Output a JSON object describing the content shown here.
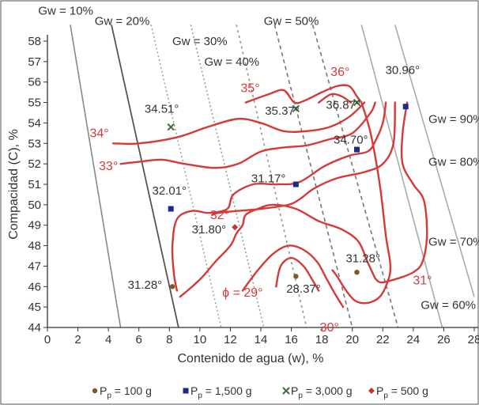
{
  "chart_data": {
    "type": "contour",
    "xlabel": "Contenido de agua (w), %",
    "ylabel": "Compacidad (C), %",
    "xlim": [
      0,
      28
    ],
    "ylim": [
      44,
      58
    ],
    "x_ticks": [
      "0",
      "2",
      "4",
      "6",
      "8",
      "10",
      "12",
      "14",
      "16",
      "18",
      "20",
      "22",
      "24",
      "26",
      "28"
    ],
    "y_ticks": [
      "44",
      "45",
      "46",
      "47",
      "48",
      "49",
      "50",
      "51",
      "52",
      "53",
      "54",
      "55",
      "56",
      "57",
      "58"
    ],
    "colors": {
      "contour": "#d43a3a",
      "contour_label": "#d43a3a",
      "p100": "#7a5a2a",
      "p1500": "#1f2a80",
      "p3000": "#3d6e3d",
      "p500": "#c0392b"
    },
    "saturation_lines": [
      {
        "label": "Gw = 10%",
        "points": [
          [
            1.5,
            58.8
          ],
          [
            4.8,
            44
          ]
        ]
      },
      {
        "label": "Gw = 20%",
        "points": [
          [
            4.2,
            58.8
          ],
          [
            8.6,
            44
          ]
        ]
      },
      {
        "label": "Gw = 30%",
        "points": [
          [
            6.8,
            58.8
          ],
          [
            11.4,
            44
          ]
        ]
      },
      {
        "label": "Gw = 40%",
        "points": [
          [
            9.4,
            58.8
          ],
          [
            14.2,
            44
          ]
        ]
      },
      {
        "label": "Gw = 50%",
        "points": [
          [
            12.4,
            58.8
          ],
          [
            17.0,
            44
          ]
        ]
      },
      {
        "label": "Gw = 60%",
        "points": [
          [
            14.9,
            58.8
          ],
          [
            20.0,
            44
          ]
        ]
      },
      {
        "label": "Gw = 70%",
        "points": [
          [
            17.4,
            58.8
          ],
          [
            23.0,
            44
          ]
        ]
      },
      {
        "label": "Gw = 80%",
        "points": [
          [
            20.6,
            58.8
          ],
          [
            25.9,
            44
          ]
        ]
      },
      {
        "label": "Gw = 90%",
        "points": [
          [
            22.8,
            58.8
          ],
          [
            28.0,
            45.5
          ]
        ]
      }
    ],
    "gw_labels": [
      {
        "text": "Gw = 10%",
        "x": 1.2,
        "y": 59.3
      },
      {
        "text": "Gw = 20%",
        "x": 4.9,
        "y": 58.8
      },
      {
        "text": "Gw = 30%",
        "x": 10.0,
        "y": 57.8
      },
      {
        "text": "Gw = 40%",
        "x": 12.1,
        "y": 56.8
      },
      {
        "text": "Gw = 50%",
        "x": 16.0,
        "y": 58.8
      },
      {
        "text": "Gw = 90%",
        "x": 26.8,
        "y": 54.0
      },
      {
        "text": "Gw = 80%",
        "x": 26.8,
        "y": 51.9
      },
      {
        "text": "Gw = 70%",
        "x": 26.8,
        "y": 48.0
      },
      {
        "text": "Gw = 60%",
        "x": 26.3,
        "y": 44.9
      }
    ],
    "contours": [
      {
        "label": "35°",
        "points": [
          [
            13.0,
            55.0
          ],
          [
            14.5,
            55.4
          ],
          [
            15.5,
            55.6
          ],
          [
            16.2,
            55.0
          ],
          [
            16.9,
            55.1
          ],
          [
            18.0,
            55.5
          ],
          [
            19.0,
            55.8
          ],
          [
            19.8,
            55.8
          ],
          [
            20.3,
            55.3
          ],
          [
            20.6,
            55.0
          ]
        ]
      },
      {
        "label": "36°",
        "points": [
          [
            17.8,
            55.0
          ],
          [
            18.6,
            55.4
          ],
          [
            19.3,
            55.3
          ],
          [
            19.9,
            55.0
          ]
        ]
      },
      {
        "label": "34°",
        "points": [
          [
            4.3,
            53.0
          ],
          [
            6.0,
            53.0
          ],
          [
            8.5,
            53.3
          ],
          [
            10.5,
            53.8
          ],
          [
            12.5,
            54.2
          ],
          [
            14.0,
            54.0
          ],
          [
            15.5,
            53.6
          ],
          [
            17.0,
            53.6
          ],
          [
            18.5,
            53.8
          ],
          [
            19.8,
            54.3
          ],
          [
            20.8,
            55.0
          ]
        ]
      },
      {
        "label": "33°",
        "points": [
          [
            4.8,
            52.0
          ],
          [
            6.0,
            52.1
          ],
          [
            7.5,
            52.2
          ],
          [
            9.0,
            52.0
          ],
          [
            11.0,
            51.8
          ],
          [
            12.5,
            52.0
          ],
          [
            14.0,
            52.6
          ],
          [
            15.5,
            52.8
          ],
          [
            17.0,
            52.9
          ],
          [
            18.5,
            53.2
          ],
          [
            20.0,
            53.5
          ],
          [
            21.2,
            54.5
          ],
          [
            21.5,
            55.0
          ]
        ]
      },
      {
        "label": "",
        "points": [
          [
            22.2,
            55.0
          ],
          [
            22.0,
            54.0
          ],
          [
            21.5,
            53.1
          ],
          [
            21.0,
            52.6
          ],
          [
            19.8,
            52.4
          ],
          [
            18.2,
            51.9
          ],
          [
            16.5,
            51.1
          ],
          [
            15.0,
            51.0
          ],
          [
            13.5,
            51.0
          ],
          [
            12.2,
            50.5
          ],
          [
            11.8,
            49.8
          ],
          [
            10.6,
            49.6
          ],
          [
            9.5,
            49.7
          ],
          [
            8.5,
            49.3
          ],
          [
            8.2,
            48.0
          ],
          [
            8.3,
            46.6
          ],
          [
            8.5,
            45.8
          ]
        ]
      },
      {
        "label": "32°",
        "points": [
          [
            22.8,
            55.0
          ],
          [
            22.7,
            53.0
          ],
          [
            22.0,
            52.0
          ],
          [
            20.8,
            51.6
          ],
          [
            19.0,
            51.3
          ],
          [
            17.5,
            50.8
          ],
          [
            16.6,
            50.3
          ],
          [
            15.8,
            50.0
          ],
          [
            14.0,
            49.8
          ],
          [
            12.5,
            49.7
          ],
          [
            11.2,
            49.6
          ],
          [
            10.8,
            49.5
          ]
        ]
      },
      {
        "label": "31°",
        "points": [
          [
            23.6,
            55.0
          ],
          [
            23.3,
            53.5
          ],
          [
            23.3,
            52.0
          ],
          [
            24.0,
            51.0
          ],
          [
            24.7,
            50.2
          ],
          [
            24.9,
            48.5
          ],
          [
            24.6,
            47.2
          ],
          [
            24.0,
            46.7
          ],
          [
            23.0,
            46.4
          ],
          [
            21.9,
            46.2
          ],
          [
            21.5,
            46.4
          ]
        ]
      },
      {
        "label": "",
        "points": [
          [
            21.5,
            46.4
          ],
          [
            21.0,
            47.2
          ],
          [
            20.4,
            48.2
          ],
          [
            19.3,
            48.8
          ],
          [
            17.8,
            49.2
          ],
          [
            16.3,
            49.8
          ],
          [
            14.8,
            50.0
          ],
          [
            13.8,
            49.8
          ],
          [
            13.0,
            49.5
          ],
          [
            12.8,
            49.0
          ],
          [
            12.4,
            48.6
          ],
          [
            12.0,
            48.0
          ],
          [
            11.0,
            47.2
          ],
          [
            10.2,
            46.5
          ],
          [
            9.5,
            46.0
          ],
          [
            8.7,
            45.5
          ]
        ]
      },
      {
        "label": "ϕ = 29°",
        "points": [
          [
            15.0,
            46.0
          ],
          [
            15.3,
            47.0
          ],
          [
            16.0,
            47.4
          ],
          [
            16.8,
            47.0
          ],
          [
            17.4,
            46.3
          ],
          [
            17.8,
            45.8
          ]
        ]
      },
      {
        "label": "30°",
        "points": [
          [
            12.8,
            45.8
          ],
          [
            13.8,
            46.8
          ],
          [
            14.8,
            47.6
          ],
          [
            15.8,
            48.0
          ],
          [
            16.8,
            47.8
          ],
          [
            17.7,
            47.2
          ],
          [
            18.3,
            46.4
          ],
          [
            18.9,
            45.6
          ],
          [
            19.4,
            45.0
          ]
        ]
      },
      {
        "label": "",
        "points": [
          [
            20.6,
            55.0
          ],
          [
            21.2,
            53.5
          ],
          [
            21.8,
            51.0
          ],
          [
            22.2,
            48.5
          ],
          [
            22.5,
            47.0
          ],
          [
            22.3,
            46.2
          ],
          [
            21.8,
            45.5
          ],
          [
            21.0,
            45.2
          ],
          [
            20.2,
            45.3
          ],
          [
            19.6,
            45.8
          ],
          [
            19.0,
            46.5
          ],
          [
            18.7,
            46.8
          ]
        ]
      }
    ],
    "contour_labels": [
      {
        "text": "35°",
        "x": 13.3,
        "y": 55.5
      },
      {
        "text": "36°",
        "x": 19.2,
        "y": 56.3
      },
      {
        "text": "34°",
        "x": 3.4,
        "y": 53.3
      },
      {
        "text": "33°",
        "x": 4.0,
        "y": 51.7
      },
      {
        "text": "32°",
        "x": 11.3,
        "y": 49.3
      },
      {
        "text": "31°",
        "x": 24.6,
        "y": 46.1
      },
      {
        "text": "30°",
        "x": 18.5,
        "y": 43.8
      },
      {
        "text": "ϕ = 29°",
        "x": 12.8,
        "y": 45.5
      }
    ],
    "points": [
      {
        "series": "p100",
        "x": 8.2,
        "y": 46.0,
        "label": "31.28°",
        "lx": 6.4,
        "ly": 45.9
      },
      {
        "series": "p100",
        "x": 16.3,
        "y": 46.5,
        "label": "28.37°",
        "lx": 16.8,
        "ly": 45.7
      },
      {
        "series": "p100",
        "x": 20.3,
        "y": 46.7,
        "label": "31.28°",
        "lx": 20.7,
        "ly": 47.2
      },
      {
        "series": "p1500",
        "x": 8.1,
        "y": 49.8,
        "label": "32.01°",
        "lx": 8.0,
        "ly": 50.5
      },
      {
        "series": "p1500",
        "x": 16.3,
        "y": 51.0,
        "label": "31.17°",
        "lx": 14.5,
        "ly": 51.1
      },
      {
        "series": "p1500",
        "x": 20.3,
        "y": 52.7,
        "label": "34.70°",
        "lx": 19.9,
        "ly": 53.0
      },
      {
        "series": "p1500",
        "x": 23.5,
        "y": 54.8,
        "label": "30.96°",
        "lx": 23.3,
        "ly": 56.4
      },
      {
        "series": "p3000",
        "x": 8.1,
        "y": 53.8,
        "label": "34.51°",
        "lx": 7.5,
        "ly": 54.5
      },
      {
        "series": "p3000",
        "x": 16.3,
        "y": 54.7,
        "label": "35.37°",
        "lx": 15.4,
        "ly": 54.4
      },
      {
        "series": "p3000",
        "x": 20.3,
        "y": 55.0,
        "label": "36.87°",
        "lx": 19.4,
        "ly": 54.7
      },
      {
        "series": "p500",
        "x": 12.3,
        "y": 48.9,
        "label": "31.80°",
        "lx": 10.6,
        "ly": 48.6
      }
    ]
  },
  "legend": [
    {
      "series": "p100",
      "marker": "dot",
      "label": "P",
      "sub": "p",
      "value": " = 100 g"
    },
    {
      "series": "p1500",
      "marker": "square",
      "label": "P",
      "sub": "p",
      "value": " = 1,500 g"
    },
    {
      "series": "p3000",
      "marker": "x",
      "label": "P",
      "sub": "p",
      "value": " = 3,000 g"
    },
    {
      "series": "p500",
      "marker": "diamond",
      "label": "P",
      "sub": "p",
      "value": " = 500 g"
    }
  ]
}
